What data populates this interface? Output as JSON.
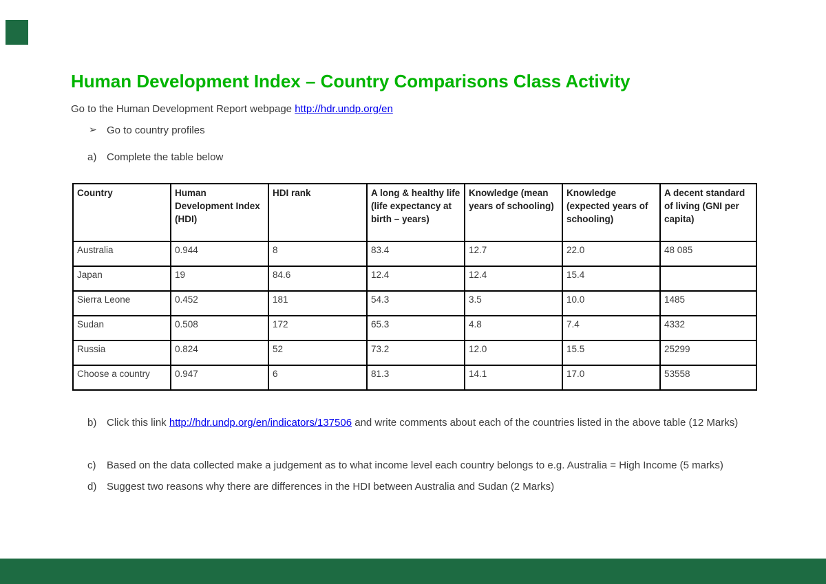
{
  "page": {
    "title": "Human Development Index – Country Comparisons Class Activity",
    "intro_prefix": "Go to the Human Development Report webpage ",
    "intro_link": "http://hdr.undp.org/en",
    "bullet_arrow": "➢",
    "bullet_text": "Go to country profiles",
    "item_a_label": "a)",
    "item_a_text": "Complete the table below"
  },
  "table": {
    "headers": [
      "Country",
      "Human Development Index (HDI)",
      "HDI rank",
      "A long & healthy life (life expectancy at birth – years)",
      "Knowledge (mean years of schooling)",
      "Knowledge (expected years of schooling)",
      "A decent standard of living (GNI per capita)"
    ],
    "rows": [
      [
        "Australia",
        "0.944",
        "8",
        "83.4",
        "12.7",
        "22.0",
        "48 085"
      ],
      [
        "Japan",
        "19",
        "84.6",
        "12.4",
        "12.4",
        "15.4",
        ""
      ],
      [
        "Sierra Leone",
        "0.452",
        "181",
        "54.3",
        "3.5",
        "10.0",
        "1485"
      ],
      [
        "Sudan",
        "0.508",
        "172",
        "65.3",
        "4.8",
        "7.4",
        "4332"
      ],
      [
        "Russia",
        "0.824",
        "52",
        "73.2",
        "12.0",
        "15.5",
        "25299"
      ],
      [
        "Choose a country",
        "0.947",
        "6",
        "81.3",
        "14.1",
        "17.0",
        "53558"
      ]
    ]
  },
  "items": {
    "b_label": "b)",
    "b_prefix": "Click this link ",
    "b_link": "http://hdr.undp.org/en/indicators/137506",
    "b_suffix": "  and write comments about each of the countries listed in the above table (12 Marks)",
    "c_label": "c)",
    "c_text": "Based on the data collected make a judgement as to what income level each country belongs to e.g. Australia = High Income (5 marks)",
    "d_label": "d)",
    "d_text": "Suggest two reasons why there are differences in the HDI between Australia and Sudan (2 Marks)"
  },
  "colors": {
    "title_green": "#00b400",
    "link_blue": "#0000ee",
    "text": "#3b3b3b",
    "accent_dark_green": "#1d6b42"
  }
}
